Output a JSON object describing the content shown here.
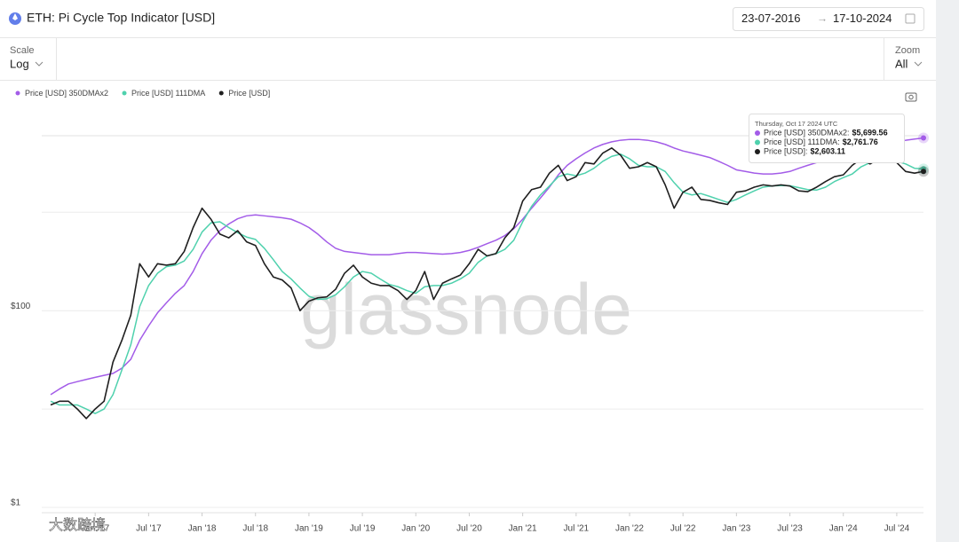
{
  "header": {
    "title": "ETH: Pi Cycle Top Indicator [USD]",
    "date_from": "23-07-2016",
    "date_separator": "→",
    "date_to": "17-10-2024"
  },
  "controls": {
    "scale_label": "Scale",
    "scale_value": "Log",
    "zoom_label": "Zoom",
    "zoom_value": "All"
  },
  "watermark": "glassnode",
  "overlay_watermark": "大数跨境",
  "chart_data": {
    "type": "line",
    "log_scale": true,
    "grid": true,
    "x": [
      "2016-08",
      "2016-09",
      "2016-10",
      "2016-11",
      "2016-12",
      "2017-01",
      "2017-02",
      "2017-03",
      "2017-04",
      "2017-05",
      "2017-06",
      "2017-07",
      "2017-08",
      "2017-09",
      "2017-10",
      "2017-11",
      "2017-12",
      "2018-01",
      "2018-02",
      "2018-03",
      "2018-04",
      "2018-05",
      "2018-06",
      "2018-07",
      "2018-08",
      "2018-09",
      "2018-10",
      "2018-11",
      "2018-12",
      "2019-01",
      "2019-02",
      "2019-03",
      "2019-04",
      "2019-05",
      "2019-06",
      "2019-07",
      "2019-08",
      "2019-09",
      "2019-10",
      "2019-11",
      "2019-12",
      "2020-01",
      "2020-02",
      "2020-03",
      "2020-04",
      "2020-05",
      "2020-06",
      "2020-07",
      "2020-08",
      "2020-09",
      "2020-10",
      "2020-11",
      "2020-12",
      "2021-01",
      "2021-02",
      "2021-03",
      "2021-04",
      "2021-05",
      "2021-06",
      "2021-07",
      "2021-08",
      "2021-09",
      "2021-10",
      "2021-11",
      "2021-12",
      "2022-01",
      "2022-02",
      "2022-03",
      "2022-04",
      "2022-05",
      "2022-06",
      "2022-07",
      "2022-08",
      "2022-09",
      "2022-10",
      "2022-11",
      "2022-12",
      "2023-01",
      "2023-02",
      "2023-03",
      "2023-04",
      "2023-05",
      "2023-06",
      "2023-07",
      "2023-08",
      "2023-09",
      "2023-10",
      "2023-11",
      "2023-12",
      "2024-01",
      "2024-02",
      "2024-03",
      "2024-04",
      "2024-05",
      "2024-06",
      "2024-07",
      "2024-08",
      "2024-09",
      "2024-10"
    ],
    "xlim": [
      "2016-07",
      "2024-10"
    ],
    "xticks": [
      {
        "value": "2017-01",
        "label": "Jan '17"
      },
      {
        "value": "2017-07",
        "label": "Jul '17"
      },
      {
        "value": "2018-01",
        "label": "Jan '18"
      },
      {
        "value": "2018-07",
        "label": "Jul '18"
      },
      {
        "value": "2019-01",
        "label": "Jan '19"
      },
      {
        "value": "2019-07",
        "label": "Jul '19"
      },
      {
        "value": "2020-01",
        "label": "Jan '20"
      },
      {
        "value": "2020-07",
        "label": "Jul '20"
      },
      {
        "value": "2021-01",
        "label": "Jan '21"
      },
      {
        "value": "2021-07",
        "label": "Jul '21"
      },
      {
        "value": "2022-01",
        "label": "Jan '22"
      },
      {
        "value": "2022-07",
        "label": "Jul '22"
      },
      {
        "value": "2023-01",
        "label": "Jan '23"
      },
      {
        "value": "2023-07",
        "label": "Jul '23"
      },
      {
        "value": "2024-01",
        "label": "Jan '24"
      },
      {
        "value": "2024-07",
        "label": "Jul '24"
      }
    ],
    "ylim": [
      1,
      6000
    ],
    "yticks": [
      {
        "value": 1,
        "label": "$1"
      },
      {
        "value": 100,
        "label": "$100"
      }
    ],
    "ygrid": [
      10,
      1000
    ],
    "legend": "top-left",
    "series": [
      {
        "name": "Price [USD] 350DMAx2",
        "color": "#a35ce8",
        "values": [
          14,
          16,
          18,
          19,
          20,
          21,
          22,
          23,
          26,
          32,
          50,
          70,
          95,
          120,
          150,
          180,
          250,
          380,
          520,
          650,
          760,
          860,
          920,
          940,
          920,
          900,
          880,
          850,
          780,
          700,
          600,
          500,
          430,
          400,
          390,
          380,
          370,
          370,
          370,
          380,
          390,
          390,
          385,
          380,
          375,
          380,
          390,
          410,
          440,
          480,
          520,
          580,
          680,
          850,
          1100,
          1400,
          1800,
          2400,
          3000,
          3500,
          4000,
          4500,
          4900,
          5200,
          5400,
          5500,
          5500,
          5400,
          5200,
          4900,
          4500,
          4200,
          4000,
          3800,
          3600,
          3300,
          3000,
          2700,
          2600,
          2500,
          2450,
          2450,
          2500,
          2600,
          2800,
          3000,
          3200,
          3400,
          3600,
          3800,
          4100,
          4400,
          4700,
          4900,
          5100,
          5300,
          5400,
          5550,
          5699.56
        ]
      },
      {
        "name": "Price [USD] 111DMA",
        "color": "#4fd1ad",
        "values": [
          12,
          11,
          11,
          11,
          10,
          9,
          10,
          14,
          25,
          45,
          110,
          180,
          240,
          280,
          290,
          320,
          420,
          630,
          780,
          800,
          700,
          620,
          560,
          530,
          430,
          330,
          250,
          210,
          170,
          140,
          130,
          132,
          145,
          175,
          220,
          250,
          240,
          210,
          185,
          175,
          160,
          150,
          175,
          180,
          180,
          190,
          210,
          240,
          310,
          360,
          380,
          420,
          520,
          800,
          1150,
          1500,
          1850,
          2300,
          2450,
          2350,
          2500,
          2800,
          3300,
          3700,
          3900,
          3500,
          3000,
          2900,
          2900,
          2600,
          2000,
          1600,
          1500,
          1550,
          1450,
          1350,
          1260,
          1350,
          1500,
          1650,
          1800,
          1850,
          1870,
          1860,
          1780,
          1700,
          1680,
          1800,
          2050,
          2250,
          2450,
          2900,
          3200,
          3250,
          3350,
          3300,
          3100,
          2800,
          2761.76
        ]
      },
      {
        "name": "Price [USD]",
        "color": "#1f1f1f",
        "values": [
          11,
          12,
          12,
          10,
          8,
          10,
          12,
          30,
          50,
          90,
          300,
          220,
          300,
          290,
          300,
          400,
          700,
          1100,
          850,
          600,
          550,
          650,
          500,
          460,
          300,
          220,
          205,
          170,
          100,
          125,
          135,
          138,
          165,
          240,
          290,
          220,
          190,
          180,
          180,
          160,
          130,
          160,
          250,
          130,
          190,
          210,
          230,
          300,
          420,
          360,
          380,
          550,
          700,
          1300,
          1700,
          1800,
          2500,
          3000,
          2100,
          2300,
          3200,
          3100,
          4000,
          4500,
          3800,
          2800,
          2900,
          3200,
          2900,
          1900,
          1100,
          1600,
          1800,
          1350,
          1320,
          1250,
          1200,
          1600,
          1650,
          1800,
          1900,
          1850,
          1900,
          1850,
          1650,
          1620,
          1800,
          2050,
          2300,
          2400,
          3000,
          3500,
          3100,
          3500,
          3400,
          3200,
          2600,
          2500,
          2603.11
        ]
      }
    ],
    "tooltip": {
      "title": "Thursday, Oct 17 2024 UTC",
      "entries": [
        {
          "name_label": "Price [USD] 350DMAx2:",
          "value_label": "$5,699.56"
        },
        {
          "name_label": "Price [USD] 111DMA:",
          "value_label": "$2,761.76"
        },
        {
          "name_label": "Price [USD]:",
          "value_label": "$2,603.11"
        }
      ]
    }
  }
}
